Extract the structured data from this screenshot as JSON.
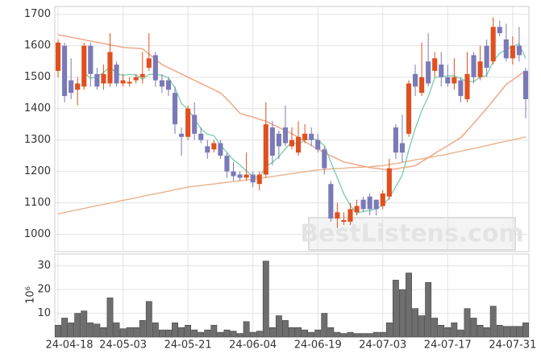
{
  "chart_data": {
    "type": "candlestick",
    "grid": true,
    "up_color": "#e0501e",
    "down_color": "#7a7ab8",
    "watermark": "BestListens.com",
    "categories": [
      "24-04-18",
      null,
      null,
      null,
      null,
      null,
      null,
      null,
      null,
      null,
      "24-05-03",
      null,
      null,
      null,
      null,
      null,
      null,
      null,
      null,
      null,
      "24-05-21",
      null,
      null,
      null,
      null,
      null,
      null,
      null,
      null,
      null,
      "24-06-04",
      null,
      null,
      null,
      null,
      null,
      null,
      null,
      null,
      null,
      "24-06-19",
      null,
      null,
      null,
      null,
      null,
      null,
      null,
      null,
      null,
      "24-07-03",
      null,
      null,
      null,
      null,
      null,
      null,
      null,
      null,
      null,
      "24-07-17",
      null,
      null,
      null,
      null,
      null,
      null,
      null,
      null,
      null,
      "24-07-31",
      null,
      null
    ],
    "open": [
      1520,
      1600,
      1490,
      1460,
      1470,
      1600,
      1510,
      1480,
      1480,
      1540,
      1480,
      1480,
      1490,
      1500,
      1530,
      1570,
      1490,
      1490,
      1450,
      1320,
      1310,
      1380,
      1320,
      1280,
      1270,
      1290,
      1250,
      1200,
      1190,
      1180,
      1190,
      1160,
      1190,
      1340,
      1320,
      1340,
      1280,
      1260,
      1300,
      1320,
      1300,
      1270,
      1160,
      1050,
      1040,
      1040,
      1070,
      1110,
      1120,
      1110,
      1090,
      1120,
      1340,
      1290,
      1320,
      1510,
      1450,
      1550,
      1520,
      1540,
      1500,
      1480,
      1490,
      1430,
      1570,
      1500,
      1600,
      1550,
      1660,
      1620,
      1560,
      1600,
      1520
    ],
    "high": [
      1620,
      1610,
      1560,
      1500,
      1610,
      1610,
      1530,
      1540,
      1640,
      1550,
      1510,
      1500,
      1510,
      1580,
      1640,
      1580,
      1510,
      1500,
      1470,
      1340,
      1410,
      1420,
      1340,
      1300,
      1300,
      1300,
      1260,
      1230,
      1200,
      1260,
      1200,
      1200,
      1420,
      1360,
      1330,
      1410,
      1340,
      1360,
      1350,
      1340,
      1320,
      1280,
      1170,
      1100,
      1070,
      1100,
      1110,
      1120,
      1130,
      1110,
      1140,
      1240,
      1350,
      1380,
      1490,
      1540,
      1610,
      1640,
      1580,
      1580,
      1540,
      1560,
      1500,
      1580,
      1580,
      1600,
      1620,
      1690,
      1680,
      1670,
      1630,
      1660,
      1530
    ],
    "low": [
      1500,
      1420,
      1430,
      1410,
      1460,
      1470,
      1460,
      1460,
      1470,
      1470,
      1470,
      1470,
      1480,
      1480,
      1520,
      1470,
      1450,
      1440,
      1320,
      1250,
      1300,
      1300,
      1290,
      1240,
      1260,
      1240,
      1180,
      1170,
      1170,
      1170,
      1150,
      1140,
      1180,
      1220,
      1240,
      1280,
      1270,
      1250,
      1290,
      1280,
      1260,
      1190,
      1040,
      1020,
      1030,
      1030,
      1060,
      1070,
      1060,
      1060,
      1080,
      1110,
      1240,
      1230,
      1310,
      1440,
      1440,
      1470,
      1500,
      1470,
      1470,
      1460,
      1420,
      1420,
      1480,
      1490,
      1500,
      1540,
      1630,
      1550,
      1540,
      1550,
      1370
    ],
    "close": [
      1610,
      1440,
      1450,
      1480,
      1600,
      1510,
      1470,
      1510,
      1580,
      1480,
      1490,
      1485,
      1500,
      1510,
      1560,
      1490,
      1470,
      1460,
      1350,
      1310,
      1400,
      1320,
      1300,
      1260,
      1290,
      1250,
      1200,
      1185,
      1180,
      1190,
      1165,
      1190,
      1350,
      1250,
      1280,
      1290,
      1300,
      1310,
      1320,
      1300,
      1270,
      1210,
      1050,
      1070,
      1045,
      1080,
      1090,
      1080,
      1080,
      1080,
      1130,
      1210,
      1260,
      1260,
      1480,
      1470,
      1500,
      1480,
      1560,
      1500,
      1480,
      1500,
      1440,
      1510,
      1500,
      1550,
      1530,
      1660,
      1640,
      1560,
      1600,
      1570,
      1430
    ],
    "ylim": [
      945,
      1725
    ],
    "yticks": [
      1000,
      1100,
      1200,
      1300,
      1400,
      1500,
      1600,
      1700
    ],
    "lines": [
      {
        "color": "#e8b48c",
        "values": [
          1065,
          1069,
          1074,
          1078,
          1082,
          1087,
          1091,
          1095,
          1099,
          1104,
          1108,
          1112,
          1116,
          1121,
          1125,
          1129,
          1133,
          1137,
          1142,
          1146,
          1150,
          1153,
          1155,
          1158,
          1160,
          1163,
          1165,
          1168,
          1170,
          1173,
          1175,
          1178,
          1181,
          1184,
          1187,
          1190,
          1193,
          1196,
          1199,
          1202,
          1205,
          1206,
          1208,
          1209,
          1210,
          1212,
          1213,
          1214,
          1215,
          1217,
          1218,
          1222,
          1225,
          1229,
          1233,
          1237,
          1240,
          1244,
          1248,
          1251,
          1255,
          1260,
          1264,
          1269,
          1273,
          1278,
          1282,
          1287,
          1292,
          1296,
          1301,
          1305,
          1310
        ]
      },
      {
        "color": "#f0a282",
        "values": [
          1635,
          1631,
          1627,
          1623,
          1619,
          1615,
          1611,
          1607,
          1603,
          1599,
          1595,
          1593,
          1592,
          1590,
          1573,
          1557,
          1540,
          1530,
          1520,
          1510,
          1500,
          1490,
          1480,
          1470,
          1460,
          1450,
          1430,
          1408,
          1385,
          1379,
          1373,
          1366,
          1360,
          1350,
          1340,
          1330,
          1320,
          1308,
          1295,
          1283,
          1270,
          1260,
          1250,
          1240,
          1230,
          1226,
          1221,
          1217,
          1212,
          1210,
          1207,
          1205,
          1208,
          1212,
          1215,
          1218,
          1231,
          1244,
          1257,
          1270,
          1282,
          1295,
          1307,
          1330,
          1353,
          1377,
          1400,
          1426,
          1451,
          1477,
          1491,
          1506,
          1520
        ]
      },
      {
        "color": "#80d0b0",
        "values": [
          null,
          null,
          null,
          null,
          1516,
          1496,
          1502,
          1514,
          1534,
          1510,
          1506,
          1509,
          1507,
          1493,
          1509,
          1509,
          1506,
          1498,
          1466,
          1416,
          1398,
          1368,
          1336,
          1318,
          1314,
          1284,
          1260,
          1237,
          1221,
          1201,
          1184,
          1182,
          1215,
          1229,
          1247,
          1272,
          1294,
          1286,
          1300,
          1304,
          1300,
          1282,
          1230,
          1180,
          1129,
          1091,
          1067,
          1073,
          1075,
          1082,
          1092,
          1116,
          1152,
          1188,
          1268,
          1336,
          1394,
          1438,
          1498,
          1502,
          1504,
          1504,
          1496,
          1486,
          1486,
          1500,
          1506,
          1550,
          1576,
          1588,
          1598,
          1606,
          1560
        ]
      }
    ],
    "volume": {
      "color": "#6e6e6e",
      "label": "10⁶",
      "ylim": [
        0,
        35
      ],
      "yticks": [
        10,
        20,
        30
      ],
      "values": [
        5,
        8,
        6,
        10,
        11,
        6,
        5.5,
        4,
        16.5,
        6,
        3.5,
        4,
        4,
        7,
        15,
        6,
        3,
        3,
        6,
        4,
        5,
        3,
        2,
        3,
        5,
        2,
        3,
        2.5,
        1.5,
        6.5,
        2,
        2.5,
        32,
        4,
        9,
        7,
        4,
        4,
        3,
        2,
        3,
        10,
        4,
        2,
        1.5,
        2,
        1.5,
        1.5,
        1.5,
        2,
        2,
        6,
        24,
        20,
        27,
        12,
        9,
        23,
        8,
        5,
        4,
        6,
        3,
        12,
        8,
        5,
        4,
        13,
        5,
        4.5,
        4.5,
        4.5,
        6
      ]
    }
  }
}
